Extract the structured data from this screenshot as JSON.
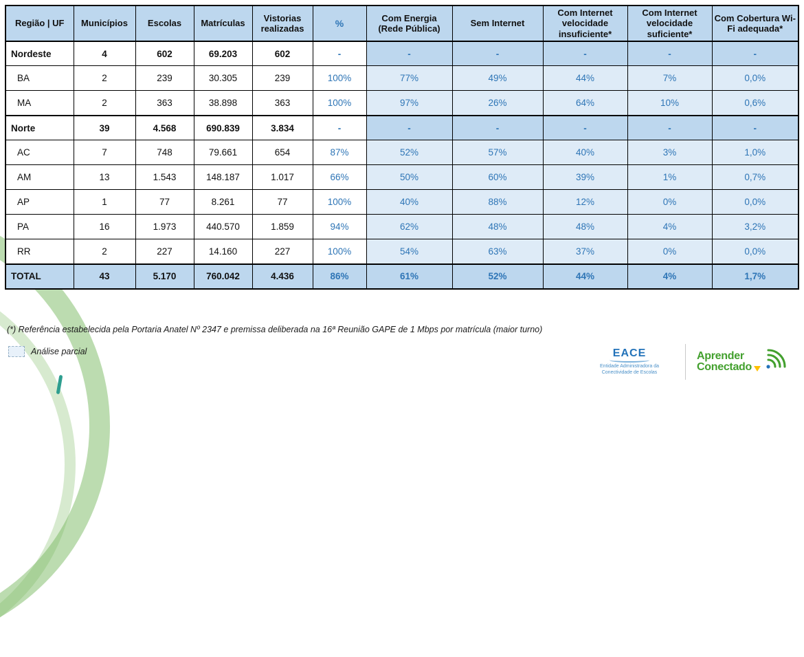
{
  "colors": {
    "header_bg": "#BDD7EE",
    "band_bg": "#DEEBF7",
    "accent_blue": "#2E75B6",
    "logo_green": "#43A02E",
    "eace_blue": "#2272B9",
    "teal": "#2E9E8F",
    "yellow": "#FFC000"
  },
  "table": {
    "headers": [
      "Região | UF",
      "Municípios",
      "Escolas",
      "Matrículas",
      "Vistorias realizadas",
      "%",
      "Com Energia (Rede Pública)",
      "Sem Internet",
      "Com Internet velocidade insuficiente*",
      "Com Internet velocidade suficiente*",
      "Com Cobertura Wi-Fi adequada*"
    ],
    "rows": [
      {
        "type": "region",
        "cells": [
          "Nordeste",
          "4",
          "602",
          "69.203",
          "602",
          "-",
          "-",
          "-",
          "-",
          "-",
          "-"
        ]
      },
      {
        "type": "state",
        "cells": [
          "BA",
          "2",
          "239",
          "30.305",
          "239",
          "100%",
          "77%",
          "49%",
          "44%",
          "7%",
          "0,0%"
        ]
      },
      {
        "type": "state",
        "cells": [
          "MA",
          "2",
          "363",
          "38.898",
          "363",
          "100%",
          "97%",
          "26%",
          "64%",
          "10%",
          "0,6%"
        ]
      },
      {
        "type": "region",
        "cells": [
          "Norte",
          "39",
          "4.568",
          "690.839",
          "3.834",
          "-",
          "-",
          "-",
          "-",
          "-",
          "-"
        ]
      },
      {
        "type": "state",
        "cells": [
          "AC",
          "7",
          "748",
          "79.661",
          "654",
          "87%",
          "52%",
          "57%",
          "40%",
          "3%",
          "1,0%"
        ]
      },
      {
        "type": "state",
        "cells": [
          "AM",
          "13",
          "1.543",
          "148.187",
          "1.017",
          "66%",
          "50%",
          "60%",
          "39%",
          "1%",
          "0,7%"
        ]
      },
      {
        "type": "state",
        "cells": [
          "AP",
          "1",
          "77",
          "8.261",
          "77",
          "100%",
          "40%",
          "88%",
          "12%",
          "0%",
          "0,0%"
        ]
      },
      {
        "type": "state",
        "cells": [
          "PA",
          "16",
          "1.973",
          "440.570",
          "1.859",
          "94%",
          "62%",
          "48%",
          "48%",
          "4%",
          "3,2%"
        ]
      },
      {
        "type": "state",
        "cells": [
          "RR",
          "2",
          "227",
          "14.160",
          "227",
          "100%",
          "54%",
          "63%",
          "37%",
          "0%",
          "0,0%"
        ]
      },
      {
        "type": "total",
        "cells": [
          "TOTAL",
          "43",
          "5.170",
          "760.042",
          "4.436",
          "86%",
          "61%",
          "52%",
          "44%",
          "4%",
          "1,7%"
        ]
      }
    ]
  },
  "footnote": "(*) Referência estabelecida pela Portaria Anatel Nº 2347 e premissa deliberada na 16ª Reunião GAPE de 1 Mbps por matrícula (maior turno)",
  "legend": {
    "label": "Análise parcial"
  },
  "logos": {
    "eace": {
      "title": "EACE",
      "subtitle": "Entidade Administradora da Conectividade de Escolas"
    },
    "aprender": {
      "line1": "Aprender",
      "line2": "Conectado"
    }
  }
}
